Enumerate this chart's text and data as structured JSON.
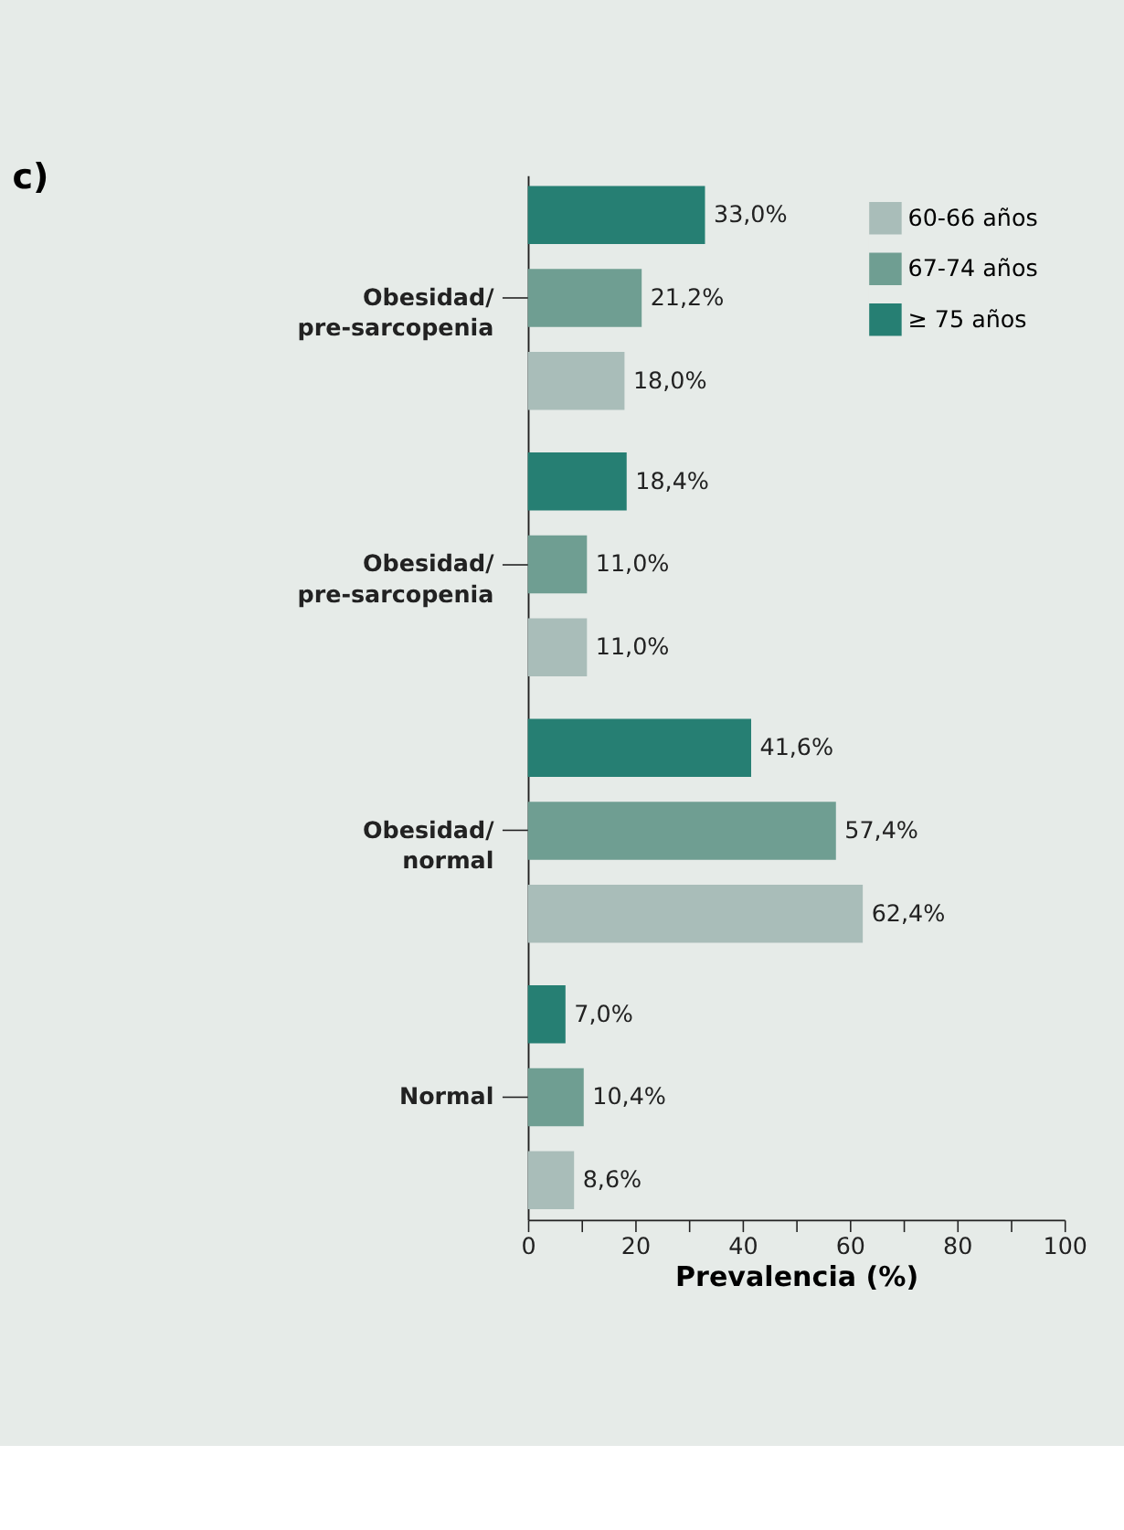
{
  "chart_data": {
    "type": "bar",
    "orientation": "horizontal",
    "title": "c)",
    "xlabel": "Prevalencia (%)",
    "categories": [
      "Obesidad/ pre-sarcopenia",
      "Obesidad/ pre-sarcopenia",
      "Obesidad/ normal",
      "Normal"
    ],
    "series": [
      {
        "name": "60-66 años",
        "color": "#a9bdb9",
        "values": [
          18.0,
          11.0,
          62.4,
          8.6
        ],
        "value_labels": [
          "18,0%",
          "11,0%",
          "62,4%",
          "8,6%"
        ]
      },
      {
        "name": "67-74 años",
        "color": "#6f9e92",
        "values": [
          21.2,
          11.0,
          57.4,
          10.4
        ],
        "value_labels": [
          "21,2%",
          "11,0%",
          "57,4%",
          "10,4%"
        ]
      },
      {
        "name": "≥ 75 años",
        "color": "#267f73",
        "values": [
          33.0,
          18.4,
          41.6,
          7.0
        ],
        "value_labels": [
          "33,0%",
          "18,4%",
          "41,6%",
          "7,0%"
        ]
      }
    ],
    "xlim": [
      0,
      100
    ],
    "xticks": [
      0,
      {
        "value": 10,
        "label": null
      },
      20,
      {
        "value": 30,
        "label": null
      },
      40,
      {
        "value": 50,
        "label": null
      },
      60,
      {
        "value": 70,
        "label": null
      },
      80,
      {
        "value": 90,
        "label": null
      },
      100
    ],
    "grid": false,
    "legend": "top right"
  }
}
